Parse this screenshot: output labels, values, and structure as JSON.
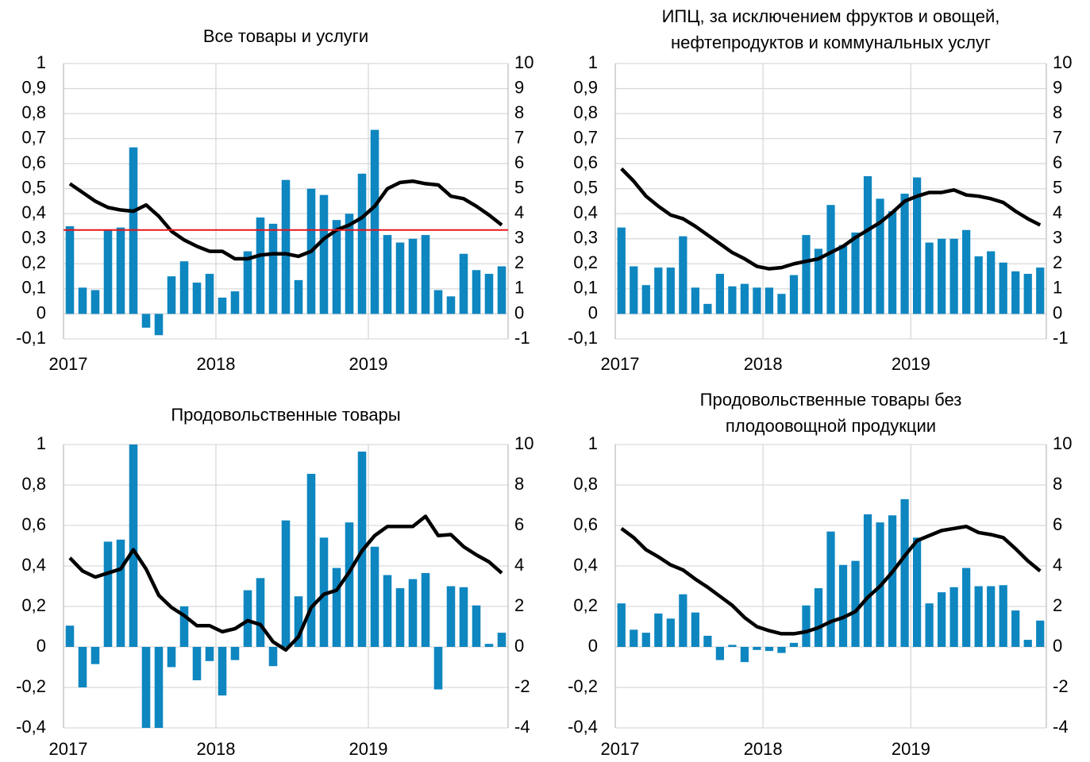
{
  "chart_data": [
    {
      "type": "bar_line",
      "title": [
        "Все товары и услуги"
      ],
      "categories": [
        "2017",
        null,
        null,
        null,
        null,
        null,
        null,
        null,
        null,
        null,
        null,
        null,
        "2018",
        null,
        null,
        null,
        null,
        null,
        null,
        null,
        null,
        null,
        null,
        null,
        "2019",
        null,
        null,
        null,
        null,
        null,
        null,
        null,
        null,
        null,
        null
      ],
      "series": [
        {
          "color": "#0e86c0",
          "values": [
            0.35,
            0.105,
            0.095,
            0.335,
            0.345,
            0.665,
            -0.055,
            -0.085,
            0.15,
            0.21,
            0.125,
            0.16,
            0.065,
            0.09,
            0.25,
            0.385,
            0.36,
            0.535,
            0.135,
            0.5,
            0.475,
            0.375,
            0.4,
            0.56,
            0.735,
            0.315,
            0.285,
            0.3,
            0.315,
            0.095,
            0.07,
            0.24,
            0.175,
            0.16,
            0.19
          ]
        },
        {
          "color": "#000000",
          "axis": "y2",
          "values": [
            5.2,
            4.85,
            4.5,
            4.25,
            4.15,
            4.1,
            4.35,
            3.9,
            3.3,
            2.95,
            2.7,
            2.5,
            2.5,
            2.2,
            2.2,
            2.35,
            2.4,
            2.4,
            2.3,
            2.5,
            3.0,
            3.35,
            3.55,
            3.85,
            4.3,
            5.0,
            5.25,
            5.3,
            5.2,
            5.15,
            4.7,
            4.6,
            4.3,
            3.95,
            3.55
          ]
        }
      ],
      "hline": 0.335,
      "hline_color": "#e8141b",
      "ylim": [
        -0.1,
        1
      ],
      "yticks": [
        {
          "value": -0.1,
          "label": "-0,1"
        },
        0,
        {
          "value": 0.1,
          "label": "0,1"
        },
        {
          "value": 0.2,
          "label": "0,2"
        },
        {
          "value": 0.3,
          "label": "0,3"
        },
        {
          "value": 0.4,
          "label": "0,4"
        },
        {
          "value": 0.5,
          "label": "0,5"
        },
        {
          "value": 0.6,
          "label": "0,6"
        },
        {
          "value": 0.7,
          "label": "0,7"
        },
        {
          "value": 0.8,
          "label": "0,8"
        },
        {
          "value": 0.9,
          "label": "0,9"
        },
        1
      ],
      "y2lim": [
        -1,
        10
      ],
      "y2ticks": [
        -1,
        0,
        1,
        2,
        3,
        4,
        5,
        6,
        7,
        8,
        9,
        10
      ],
      "grid": true
    },
    {
      "type": "bar_line",
      "title": [
        "ИПЦ, за исключением фруктов и овощей,",
        "нефтепродуктов и коммунальных услуг"
      ],
      "categories": [
        "2017",
        null,
        null,
        null,
        null,
        null,
        null,
        null,
        null,
        null,
        null,
        null,
        "2018",
        null,
        null,
        null,
        null,
        null,
        null,
        null,
        null,
        null,
        null,
        null,
        "2019",
        null,
        null,
        null,
        null,
        null,
        null,
        null,
        null,
        null,
        null
      ],
      "series": [
        {
          "color": "#0e86c0",
          "values": [
            0.345,
            0.19,
            0.115,
            0.185,
            0.185,
            0.31,
            0.105,
            0.04,
            0.16,
            0.11,
            0.12,
            0.105,
            0.105,
            0.08,
            0.155,
            0.315,
            0.26,
            0.435,
            0.275,
            0.325,
            0.55,
            0.46,
            0.41,
            0.48,
            0.545,
            0.285,
            0.3,
            0.3,
            0.335,
            0.23,
            0.25,
            0.205,
            0.17,
            0.16,
            0.185
          ]
        },
        {
          "color": "#000000",
          "axis": "y2",
          "values": [
            5.8,
            5.3,
            4.7,
            4.3,
            3.95,
            3.8,
            3.5,
            3.15,
            2.8,
            2.45,
            2.2,
            1.9,
            1.8,
            1.85,
            2.0,
            2.1,
            2.2,
            2.45,
            2.7,
            3.05,
            3.35,
            3.65,
            4.05,
            4.5,
            4.7,
            4.85,
            4.85,
            4.95,
            4.75,
            4.7,
            4.6,
            4.45,
            4.1,
            3.8,
            3.55
          ]
        }
      ],
      "ylim": [
        -0.1,
        1
      ],
      "yticks": [
        {
          "value": -0.1,
          "label": "-0,1"
        },
        0,
        {
          "value": 0.1,
          "label": "0,1"
        },
        {
          "value": 0.2,
          "label": "0,2"
        },
        {
          "value": 0.3,
          "label": "0,3"
        },
        {
          "value": 0.4,
          "label": "0,4"
        },
        {
          "value": 0.5,
          "label": "0,5"
        },
        {
          "value": 0.6,
          "label": "0,6"
        },
        {
          "value": 0.7,
          "label": "0,7"
        },
        {
          "value": 0.8,
          "label": "0,8"
        },
        {
          "value": 0.9,
          "label": "0,9"
        },
        1
      ],
      "y2lim": [
        -1,
        10
      ],
      "y2ticks": [
        -1,
        0,
        1,
        2,
        3,
        4,
        5,
        6,
        7,
        8,
        9,
        10
      ],
      "grid": true
    },
    {
      "type": "bar_line",
      "title": [
        "Продовольственные товары"
      ],
      "categories": [
        "2017",
        null,
        null,
        null,
        null,
        null,
        null,
        null,
        null,
        null,
        null,
        null,
        "2018",
        null,
        null,
        null,
        null,
        null,
        null,
        null,
        null,
        null,
        null,
        null,
        "2019",
        null,
        null,
        null,
        null,
        null,
        null,
        null,
        null,
        null,
        null
      ],
      "series": [
        {
          "color": "#0e86c0",
          "values": [
            0.105,
            -0.2,
            -0.085,
            0.52,
            0.53,
            1.0,
            -0.4,
            -0.4,
            -0.1,
            0.2,
            -0.165,
            -0.07,
            -0.24,
            -0.065,
            0.28,
            0.34,
            -0.095,
            0.625,
            0.25,
            0.855,
            0.54,
            0.39,
            0.615,
            0.965,
            0.495,
            0.355,
            0.29,
            0.335,
            0.365,
            -0.21,
            0.3,
            0.295,
            0.205,
            0.015,
            0.07
          ]
        },
        {
          "color": "#000000",
          "axis": "y2",
          "values": [
            4.4,
            3.75,
            3.45,
            3.65,
            3.85,
            4.8,
            3.85,
            2.55,
            1.95,
            1.55,
            1.05,
            1.05,
            0.75,
            0.9,
            1.3,
            1.1,
            0.25,
            -0.15,
            0.5,
            1.95,
            2.6,
            2.8,
            3.7,
            4.75,
            5.5,
            5.95,
            5.95,
            5.95,
            6.45,
            5.5,
            5.55,
            4.95,
            4.55,
            4.2,
            3.65
          ]
        }
      ],
      "ylim": [
        -0.4,
        1
      ],
      "yticks": [
        {
          "value": -0.4,
          "label": "-0,4"
        },
        {
          "value": -0.2,
          "label": "-0,2"
        },
        0,
        {
          "value": 0.2,
          "label": "0,2"
        },
        {
          "value": 0.4,
          "label": "0,4"
        },
        {
          "value": 0.6,
          "label": "0,6"
        },
        {
          "value": 0.8,
          "label": "0,8"
        },
        1
      ],
      "y2lim": [
        -4,
        10
      ],
      "y2ticks": [
        -4,
        -2,
        0,
        2,
        4,
        6,
        8,
        10
      ],
      "grid": true
    },
    {
      "type": "bar_line",
      "title": [
        "Продовольственные товары без",
        "плодоовощной продукции"
      ],
      "categories": [
        "2017",
        null,
        null,
        null,
        null,
        null,
        null,
        null,
        null,
        null,
        null,
        null,
        "2018",
        null,
        null,
        null,
        null,
        null,
        null,
        null,
        null,
        null,
        null,
        null,
        "2019",
        null,
        null,
        null,
        null,
        null,
        null,
        null,
        null,
        null,
        null
      ],
      "series": [
        {
          "color": "#0e86c0",
          "values": [
            0.215,
            0.085,
            0.07,
            0.165,
            0.14,
            0.26,
            0.17,
            0.055,
            -0.065,
            0.01,
            -0.075,
            -0.015,
            -0.02,
            -0.03,
            0.02,
            0.205,
            0.29,
            0.57,
            0.405,
            0.425,
            0.655,
            0.615,
            0.65,
            0.73,
            0.54,
            0.215,
            0.27,
            0.295,
            0.39,
            0.3,
            0.3,
            0.305,
            0.18,
            0.035,
            0.13
          ]
        },
        {
          "color": "#000000",
          "axis": "y2",
          "values": [
            5.85,
            5.4,
            4.8,
            4.45,
            4.05,
            3.8,
            3.35,
            2.95,
            2.5,
            2.05,
            1.45,
            1.0,
            0.8,
            0.65,
            0.65,
            0.75,
            0.95,
            1.25,
            1.45,
            1.75,
            2.45,
            3.0,
            3.7,
            4.5,
            5.25,
            5.5,
            5.75,
            5.85,
            5.95,
            5.65,
            5.55,
            5.4,
            4.85,
            4.25,
            3.75
          ]
        }
      ],
      "ylim": [
        -0.4,
        1
      ],
      "yticks": [
        {
          "value": -0.4,
          "label": "-0,4"
        },
        {
          "value": -0.2,
          "label": "-0,2"
        },
        0,
        {
          "value": 0.2,
          "label": "0,2"
        },
        {
          "value": 0.4,
          "label": "0,4"
        },
        {
          "value": 0.6,
          "label": "0,6"
        },
        {
          "value": 0.8,
          "label": "0,8"
        },
        1
      ],
      "y2lim": [
        -4,
        10
      ],
      "y2ticks": [
        -4,
        -2,
        0,
        2,
        4,
        6,
        8,
        10
      ],
      "grid": true
    }
  ]
}
